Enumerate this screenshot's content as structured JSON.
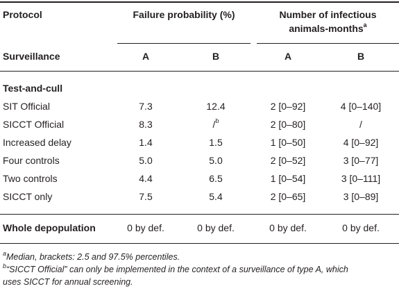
{
  "header": {
    "protocol": "Protocol",
    "failure_probability": "Failure probability (%)",
    "infectious_line1": "Number of infectious",
    "infectious_line2": "animals-months",
    "infectious_sup": "a",
    "surveillance": "Surveillance",
    "col_a1": "A",
    "col_b1": "B",
    "col_a2": "A",
    "col_b2": "B"
  },
  "section": {
    "title": "Test-and-cull"
  },
  "rows": [
    {
      "label": "SIT Official",
      "fp_a": "7.3",
      "fp_b": "12.4",
      "inf_a": "2 [0–92]",
      "inf_b": "4 [0–140]"
    },
    {
      "label": "SICCT Official",
      "fp_a": "8.3",
      "fp_b": "/",
      "fp_b_sup": "b",
      "inf_a": "2 [0–80]",
      "inf_b": "/"
    },
    {
      "label": "Increased delay",
      "fp_a": "1.4",
      "fp_b": "1.5",
      "inf_a": "1 [0–50]",
      "inf_b": "4 [0–92]"
    },
    {
      "label": "Four controls",
      "fp_a": "5.0",
      "fp_b": "5.0",
      "inf_a": "2 [0–52]",
      "inf_b": "3 [0–77]"
    },
    {
      "label": "Two controls",
      "fp_a": "4.4",
      "fp_b": "6.5",
      "inf_a": "1 [0–54]",
      "inf_b": "3 [0–111]"
    },
    {
      "label": "SICCT only",
      "fp_a": "7.5",
      "fp_b": "5.4",
      "inf_a": "2 [0–65]",
      "inf_b": "3 [0–89]"
    }
  ],
  "whole": {
    "label": "Whole depopulation",
    "fp_a": "0 by def.",
    "fp_b": "0 by def.",
    "inf_a": "0 by def.",
    "inf_b": "0 by def."
  },
  "footnotes": {
    "a_mark": "a",
    "a_text": "Median, brackets: 2.5 and 97.5% percentiles.",
    "b_mark": "b",
    "b_line1": "“SICCT Official” can only be implemented in the context of a surveillance of type A, which",
    "b_line2": "uses SICCT for annual screening."
  }
}
